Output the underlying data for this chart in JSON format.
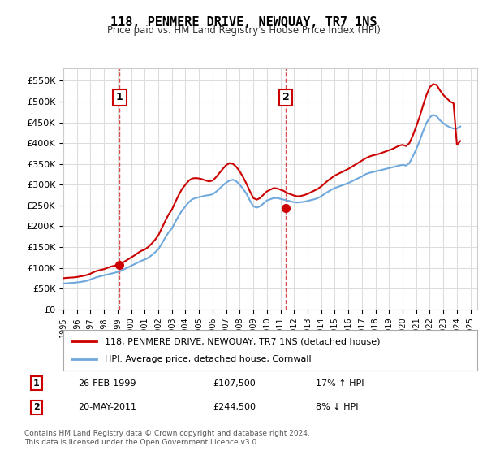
{
  "title": "118, PENMERE DRIVE, NEWQUAY, TR7 1NS",
  "subtitle": "Price paid vs. HM Land Registry's House Price Index (HPI)",
  "ylabel_ticks": [
    "£0",
    "£50K",
    "£100K",
    "£150K",
    "£200K",
    "£250K",
    "£300K",
    "£350K",
    "£400K",
    "£450K",
    "£500K",
    "£550K"
  ],
  "ytick_values": [
    0,
    50000,
    100000,
    150000,
    200000,
    250000,
    300000,
    350000,
    400000,
    450000,
    500000,
    550000
  ],
  "ylim": [
    0,
    580000
  ],
  "xlim_start": 1995.0,
  "xlim_end": 2025.5,
  "hpi_color": "#6fa8dc",
  "price_color": "#cc0000",
  "marker1_date": 1999.15,
  "marker1_price": 107500,
  "marker1_label": "1",
  "marker1_info": "26-FEB-1999    £107,500    17% ↑ HPI",
  "marker2_date": 2011.38,
  "marker2_price": 244500,
  "marker2_label": "2",
  "marker2_info": "20-MAY-2011    £244,500    8% ↓ HPI",
  "vline1_x": 1999.15,
  "vline2_x": 2011.38,
  "legend_line1": "118, PENMERE DRIVE, NEWQUAY, TR7 1NS (detached house)",
  "legend_line2": "HPI: Average price, detached house, Cornwall",
  "footer": "Contains HM Land Registry data © Crown copyright and database right 2024.\nThis data is licensed under the Open Government Licence v3.0.",
  "background_color": "#ffffff",
  "grid_color": "#dddddd",
  "hpi_data": {
    "years": [
      1995.0,
      1995.25,
      1995.5,
      1995.75,
      1996.0,
      1996.25,
      1996.5,
      1996.75,
      1997.0,
      1997.25,
      1997.5,
      1997.75,
      1998.0,
      1998.25,
      1998.5,
      1998.75,
      1999.0,
      1999.25,
      1999.5,
      1999.75,
      2000.0,
      2000.25,
      2000.5,
      2000.75,
      2001.0,
      2001.25,
      2001.5,
      2001.75,
      2002.0,
      2002.25,
      2002.5,
      2002.75,
      2003.0,
      2003.25,
      2003.5,
      2003.75,
      2004.0,
      2004.25,
      2004.5,
      2004.75,
      2005.0,
      2005.25,
      2005.5,
      2005.75,
      2006.0,
      2006.25,
      2006.5,
      2006.75,
      2007.0,
      2007.25,
      2007.5,
      2007.75,
      2008.0,
      2008.25,
      2008.5,
      2008.75,
      2009.0,
      2009.25,
      2009.5,
      2009.75,
      2010.0,
      2010.25,
      2010.5,
      2010.75,
      2011.0,
      2011.25,
      2011.5,
      2011.75,
      2012.0,
      2012.25,
      2012.5,
      2012.75,
      2013.0,
      2013.25,
      2013.5,
      2013.75,
      2014.0,
      2014.25,
      2014.5,
      2014.75,
      2015.0,
      2015.25,
      2015.5,
      2015.75,
      2016.0,
      2016.25,
      2016.5,
      2016.75,
      2017.0,
      2017.25,
      2017.5,
      2017.75,
      2018.0,
      2018.25,
      2018.5,
      2018.75,
      2019.0,
      2019.25,
      2019.5,
      2019.75,
      2020.0,
      2020.25,
      2020.5,
      2020.75,
      2021.0,
      2021.25,
      2021.5,
      2021.75,
      2022.0,
      2022.25,
      2022.5,
      2022.75,
      2023.0,
      2023.25,
      2023.5,
      2023.75,
      2024.0,
      2024.25
    ],
    "values": [
      62000,
      63000,
      63500,
      64000,
      65000,
      66000,
      67500,
      69000,
      72000,
      75000,
      78000,
      80000,
      82000,
      84000,
      86000,
      88000,
      90000,
      93000,
      97000,
      101000,
      105000,
      109000,
      113000,
      117000,
      120000,
      124000,
      130000,
      137000,
      145000,
      158000,
      172000,
      185000,
      195000,
      210000,
      225000,
      238000,
      248000,
      258000,
      265000,
      268000,
      270000,
      272000,
      274000,
      275000,
      277000,
      283000,
      290000,
      298000,
      305000,
      310000,
      312000,
      308000,
      300000,
      290000,
      278000,
      262000,
      248000,
      245000,
      248000,
      255000,
      262000,
      265000,
      268000,
      268000,
      266000,
      264000,
      262000,
      260000,
      258000,
      257000,
      258000,
      259000,
      261000,
      263000,
      265000,
      268000,
      272000,
      278000,
      283000,
      288000,
      292000,
      295000,
      298000,
      301000,
      304000,
      308000,
      312000,
      316000,
      320000,
      325000,
      328000,
      330000,
      332000,
      334000,
      336000,
      338000,
      340000,
      342000,
      344000,
      346000,
      348000,
      346000,
      352000,
      368000,
      385000,
      405000,
      428000,
      448000,
      462000,
      468000,
      465000,
      455000,
      448000,
      442000,
      438000,
      435000,
      435000,
      440000
    ]
  },
  "price_data": {
    "years": [
      1995.0,
      1995.25,
      1995.5,
      1995.75,
      1996.0,
      1996.25,
      1996.5,
      1996.75,
      1997.0,
      1997.25,
      1997.5,
      1997.75,
      1998.0,
      1998.25,
      1998.5,
      1998.75,
      1999.0,
      1999.25,
      1999.5,
      1999.75,
      2000.0,
      2000.25,
      2000.5,
      2000.75,
      2001.0,
      2001.25,
      2001.5,
      2001.75,
      2002.0,
      2002.25,
      2002.5,
      2002.75,
      2003.0,
      2003.25,
      2003.5,
      2003.75,
      2004.0,
      2004.25,
      2004.5,
      2004.75,
      2005.0,
      2005.25,
      2005.5,
      2005.75,
      2006.0,
      2006.25,
      2006.5,
      2006.75,
      2007.0,
      2007.25,
      2007.5,
      2007.75,
      2008.0,
      2008.25,
      2008.5,
      2008.75,
      2009.0,
      2009.25,
      2009.5,
      2009.75,
      2010.0,
      2010.25,
      2010.5,
      2010.75,
      2011.0,
      2011.25,
      2011.5,
      2011.75,
      2012.0,
      2012.25,
      2012.5,
      2012.75,
      2013.0,
      2013.25,
      2013.5,
      2013.75,
      2014.0,
      2014.25,
      2014.5,
      2014.75,
      2015.0,
      2015.25,
      2015.5,
      2015.75,
      2016.0,
      2016.25,
      2016.5,
      2016.75,
      2017.0,
      2017.25,
      2017.5,
      2017.75,
      2018.0,
      2018.25,
      2018.5,
      2018.75,
      2019.0,
      2019.25,
      2019.5,
      2019.75,
      2020.0,
      2020.25,
      2020.5,
      2020.75,
      2021.0,
      2021.25,
      2021.5,
      2021.75,
      2022.0,
      2022.25,
      2022.5,
      2022.75,
      2023.0,
      2023.25,
      2023.5,
      2023.75,
      2024.0,
      2024.25
    ],
    "values": [
      75000,
      76000,
      76500,
      77000,
      78000,
      79500,
      81000,
      83000,
      86000,
      90000,
      93000,
      95000,
      97000,
      100000,
      103000,
      105000,
      107000,
      110500,
      115000,
      120000,
      125000,
      130000,
      136000,
      141000,
      144000,
      150000,
      158000,
      167000,
      178000,
      195000,
      212000,
      228000,
      240000,
      258000,
      275000,
      290000,
      300000,
      310000,
      315000,
      316000,
      315000,
      313000,
      310000,
      308000,
      310000,
      318000,
      328000,
      338000,
      347000,
      352000,
      350000,
      343000,
      332000,
      318000,
      302000,
      284000,
      268000,
      264000,
      268000,
      276000,
      284000,
      288000,
      292000,
      291000,
      288000,
      285000,
      280000,
      277000,
      274000,
      272000,
      273000,
      275000,
      278000,
      282000,
      286000,
      290000,
      296000,
      303000,
      310000,
      316000,
      322000,
      326000,
      330000,
      334000,
      338000,
      343000,
      348000,
      353000,
      358000,
      363000,
      367000,
      370000,
      372000,
      374000,
      377000,
      380000,
      383000,
      386000,
      390000,
      394000,
      396000,
      393000,
      400000,
      418000,
      440000,
      463000,
      490000,
      515000,
      535000,
      542000,
      540000,
      527000,
      516000,
      508000,
      500000,
      496000,
      396000,
      405000
    ]
  }
}
